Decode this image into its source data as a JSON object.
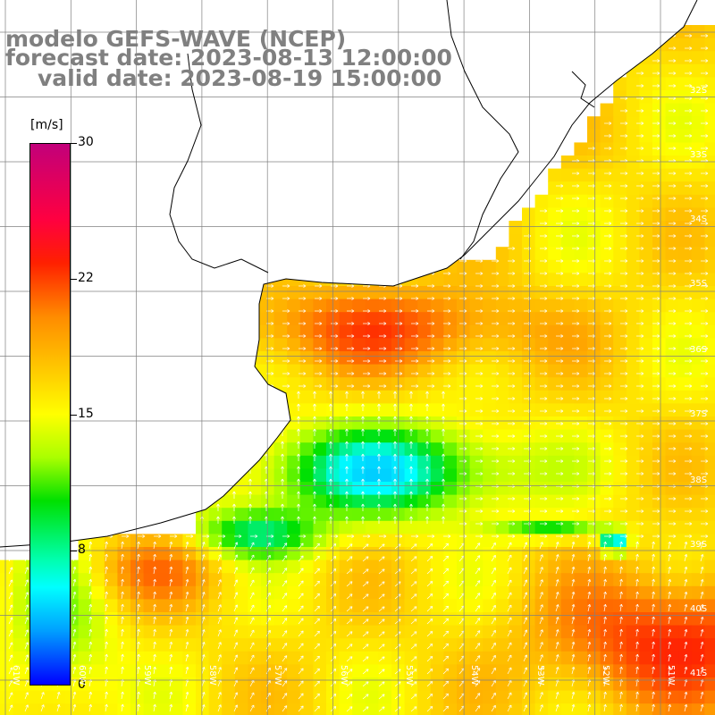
{
  "title": {
    "line1": "modelo GEFS-WAVE (NCEP)",
    "line2": "forecast date: 2023-08-13 12:00:00",
    "line3": "valid date: 2023-08-19 15:00:00"
  },
  "colorbar": {
    "unit": "[m/s]",
    "ticks": [
      "30",
      "22",
      "15",
      "8",
      "0"
    ],
    "tick_values": [
      30,
      22,
      15,
      8,
      0
    ],
    "colors": [
      "#0000ff",
      "#00a0ff",
      "#00ffff",
      "#00e000",
      "#ffff00",
      "#ffa000",
      "#ff2000",
      "#c2007a"
    ]
  },
  "lat_labels": [
    "32S",
    "33S",
    "34S",
    "35S",
    "36S",
    "37S",
    "38S",
    "39S",
    "40S",
    "41S"
  ],
  "lon_labels": [
    "61W",
    "60W",
    "59W",
    "58W",
    "57W",
    "56W",
    "55W",
    "54W",
    "53W",
    "52W",
    "51W"
  ],
  "colors": {
    "land": "#ffffff",
    "coast": "#000000",
    "grid": "#808080",
    "arrow": "#ffffff",
    "title": "#808080"
  }
}
